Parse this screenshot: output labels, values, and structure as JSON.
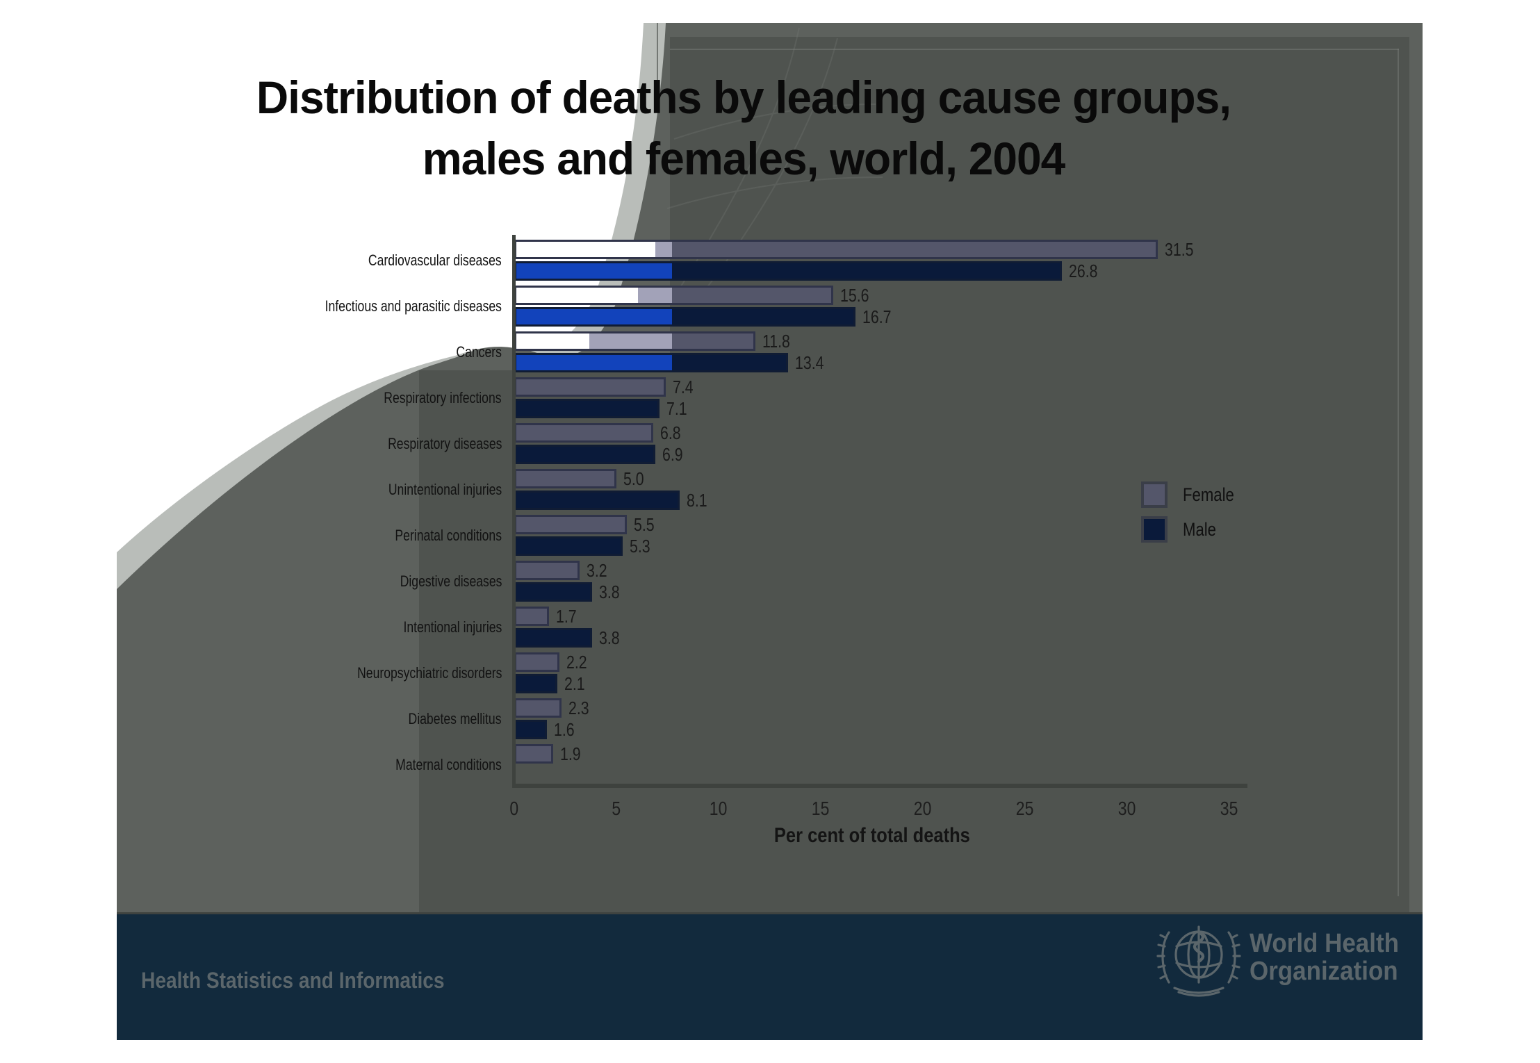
{
  "slide": {
    "title_line1": "Distribution of deaths by leading cause groups,",
    "title_line2": "males and females, world, 2004",
    "footer": {
      "department": "Health Statistics and Informatics",
      "org_line1": "World Health",
      "org_line2": "Organization"
    }
  },
  "chart_data": {
    "type": "bar",
    "orientation": "horizontal",
    "xlabel": "Per cent of total deaths",
    "xlim": [
      0,
      35
    ],
    "xticks": [
      0,
      5,
      10,
      15,
      20,
      25,
      30,
      35
    ],
    "grid": false,
    "legend_position": "right",
    "categories": [
      "Cardiovascular diseases",
      "Infectious and parasitic diseases",
      "Cancers",
      "Respiratory infections",
      "Respiratory diseases",
      "Unintentional injuries",
      "Perinatal conditions",
      "Digestive diseases",
      "Intentional injuries",
      "Neuropsychiatric disorders",
      "Diabetes mellitus",
      "Maternal conditions"
    ],
    "series": [
      {
        "name": "Female",
        "values": [
          31.5,
          15.6,
          11.8,
          7.4,
          6.8,
          5.0,
          5.5,
          3.2,
          1.7,
          2.2,
          2.3,
          1.9
        ]
      },
      {
        "name": "Male",
        "values": [
          26.8,
          16.7,
          13.4,
          7.1,
          6.9,
          8.1,
          5.3,
          3.8,
          3.8,
          2.1,
          1.6,
          null
        ]
      }
    ],
    "colors": {
      "female_dark": "#54566a",
      "female_bright": "#ffffff",
      "female_mid": "#a2a2b8",
      "female_border": "#30344a",
      "male_dark": "#0a1a3a",
      "male_bright": "#1243bb",
      "male_border": "#101c34",
      "axis": "#3e423e",
      "slide_gray": "#5d615d",
      "overlay_gray": "#4f534f",
      "footer_navy": "#122a3d",
      "footer_text": "#5b666b",
      "swoosh_gray": "#b9bdb9"
    }
  }
}
